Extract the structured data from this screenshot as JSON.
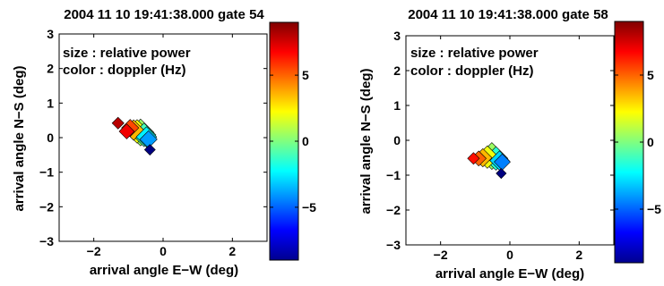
{
  "chart_data": [
    {
      "type": "scatter",
      "title": "2004 11 10   19:41:38.000 gate 54",
      "xlabel": "arrival angle E−W (deg)",
      "ylabel": "arrival angle N−S (deg)",
      "xlim": [
        -3,
        3
      ],
      "ylim": [
        -3,
        3
      ],
      "xticks": [
        "−2",
        "0",
        "2"
      ],
      "yticks": [
        "3",
        "2",
        "1",
        "0",
        "−1",
        "−2",
        "−3"
      ],
      "annotations": [
        "size  : relative power",
        "color : doppler (Hz)"
      ],
      "colorbar": {
        "range": [
          -9,
          9
        ],
        "ticks": [
          "5",
          "0",
          "−5"
        ]
      },
      "grid": false,
      "points": [
        {
          "x": -1.3,
          "y": 0.42,
          "size": 0.3,
          "doppler": 8.0
        },
        {
          "x": -1.05,
          "y": 0.18,
          "size": 0.45,
          "doppler": 7.0
        },
        {
          "x": -0.95,
          "y": 0.28,
          "size": 0.55,
          "doppler": 5.5
        },
        {
          "x": -0.85,
          "y": 0.22,
          "size": 0.7,
          "doppler": 3.5
        },
        {
          "x": -0.75,
          "y": 0.18,
          "size": 0.85,
          "doppler": 2.0
        },
        {
          "x": -0.65,
          "y": 0.15,
          "size": 1.0,
          "doppler": 0.5
        },
        {
          "x": -0.55,
          "y": 0.08,
          "size": 0.85,
          "doppler": -1.0
        },
        {
          "x": -0.48,
          "y": 0.02,
          "size": 0.7,
          "doppler": -2.5
        },
        {
          "x": -0.42,
          "y": -0.05,
          "size": 0.55,
          "doppler": -4.0
        },
        {
          "x": -0.38,
          "y": -0.35,
          "size": 0.25,
          "doppler": -9.0
        }
      ]
    },
    {
      "type": "scatter",
      "title": "2004 11 10   19:41:38.000 gate 58",
      "xlabel": "arrival angle E−W (deg)",
      "ylabel": "arrival angle N−S (deg)",
      "xlim": [
        -3,
        3
      ],
      "ylim": [
        -3,
        3
      ],
      "xticks": [
        "−2",
        "0",
        "2"
      ],
      "yticks": [
        "3",
        "2",
        "1",
        "0",
        "−1",
        "−2",
        "−3"
      ],
      "annotations": [
        "size  : relative power",
        "color : doppler (Hz)"
      ],
      "colorbar": {
        "range": [
          -9,
          9
        ],
        "ticks": [
          "5",
          "0",
          "−5"
        ]
      },
      "grid": false,
      "points": [
        {
          "x": -1.05,
          "y": -0.52,
          "size": 0.3,
          "doppler": 6.5
        },
        {
          "x": -0.9,
          "y": -0.52,
          "size": 0.45,
          "doppler": 5.0
        },
        {
          "x": -0.78,
          "y": -0.5,
          "size": 0.6,
          "doppler": 3.5
        },
        {
          "x": -0.65,
          "y": -0.48,
          "size": 0.8,
          "doppler": 2.0
        },
        {
          "x": -0.52,
          "y": -0.45,
          "size": 1.0,
          "doppler": 0.5
        },
        {
          "x": -0.4,
          "y": -0.52,
          "size": 0.85,
          "doppler": -1.5
        },
        {
          "x": -0.3,
          "y": -0.58,
          "size": 0.65,
          "doppler": -3.0
        },
        {
          "x": -0.22,
          "y": -0.62,
          "size": 0.5,
          "doppler": -4.5
        },
        {
          "x": -0.25,
          "y": -0.95,
          "size": 0.22,
          "doppler": -9.0
        }
      ]
    }
  ]
}
